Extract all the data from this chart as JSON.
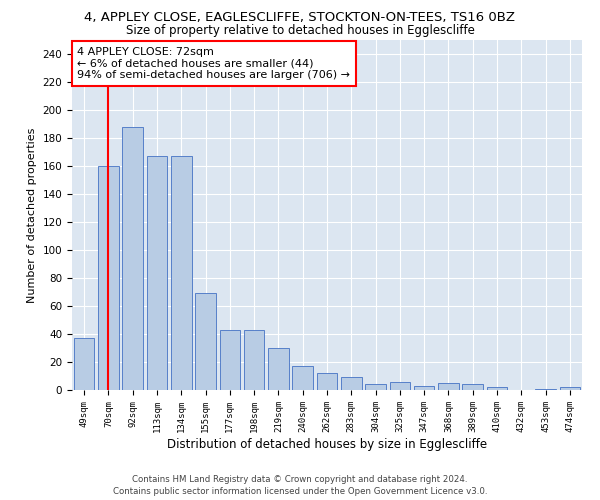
{
  "title1": "4, APPLEY CLOSE, EAGLESCLIFFE, STOCKTON-ON-TEES, TS16 0BZ",
  "title2": "Size of property relative to detached houses in Egglescliffe",
  "xlabel": "Distribution of detached houses by size in Egglescliffe",
  "ylabel": "Number of detached properties",
  "categories": [
    "49sqm",
    "70sqm",
    "92sqm",
    "113sqm",
    "134sqm",
    "155sqm",
    "177sqm",
    "198sqm",
    "219sqm",
    "240sqm",
    "262sqm",
    "283sqm",
    "304sqm",
    "325sqm",
    "347sqm",
    "368sqm",
    "389sqm",
    "410sqm",
    "432sqm",
    "453sqm",
    "474sqm"
  ],
  "values": [
    37,
    160,
    188,
    167,
    167,
    69,
    43,
    43,
    30,
    17,
    12,
    9,
    4,
    6,
    3,
    5,
    4,
    2,
    0,
    1,
    2
  ],
  "bar_color": "#b8cce4",
  "bar_edge_color": "#4472c4",
  "annotation_text": "4 APPLEY CLOSE: 72sqm\n← 6% of detached houses are smaller (44)\n94% of semi-detached houses are larger (706) →",
  "ylim": [
    0,
    250
  ],
  "yticks": [
    0,
    20,
    40,
    60,
    80,
    100,
    120,
    140,
    160,
    180,
    200,
    220,
    240
  ],
  "plot_bg_color": "#dce6f1",
  "footer1": "Contains HM Land Registry data © Crown copyright and database right 2024.",
  "footer2": "Contains public sector information licensed under the Open Government Licence v3.0.",
  "title_fontsize": 9.5,
  "subtitle_fontsize": 8.5,
  "bar_width": 0.85
}
